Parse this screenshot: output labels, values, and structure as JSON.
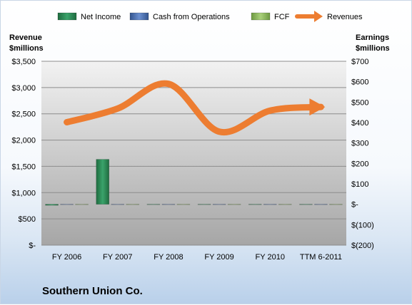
{
  "chart_data": {
    "type": "bar",
    "title": "Southern Union Co.",
    "categories": [
      "FY 2006",
      "FY 2007",
      "FY 2008",
      "FY 2009",
      "FY 2010",
      "TTM 6-2011"
    ],
    "left_axis": {
      "label_line1": "Revenue",
      "label_line2": "$millions",
      "ticks": [
        "$-",
        "$500",
        "$1,000",
        "$1,500",
        "$2,000",
        "$2,500",
        "$3,000",
        "$3,500"
      ],
      "ylim": [
        0,
        3500
      ]
    },
    "right_axis": {
      "label_line1": "Earnings",
      "label_line2": "$millions",
      "ticks": [
        "$(200)",
        "$(100)",
        "$-",
        "$100",
        "$200",
        "$300",
        "$400",
        "$500",
        "$600",
        "$700"
      ],
      "ylim": [
        -200,
        700
      ]
    },
    "series": [
      {
        "name": "Net Income",
        "axis": "right",
        "kind": "bar",
        "color": "#2e8b57",
        "values": [
          -5,
          220,
          0,
          0,
          0,
          0
        ]
      },
      {
        "name": "Cash from Operations",
        "axis": "right",
        "kind": "bar",
        "color": "#4a72b8",
        "values": [
          0,
          0,
          0,
          0,
          0,
          0
        ]
      },
      {
        "name": "FCF",
        "axis": "right",
        "kind": "bar",
        "color": "#8fbf5a",
        "values": [
          0,
          0,
          0,
          0,
          0,
          0
        ]
      },
      {
        "name": "Revenues",
        "axis": "left",
        "kind": "line",
        "color": "#ed7d31",
        "values": [
          2340,
          2600,
          3070,
          2160,
          2560,
          2630
        ]
      }
    ],
    "grid": true,
    "legend_position": "top"
  }
}
